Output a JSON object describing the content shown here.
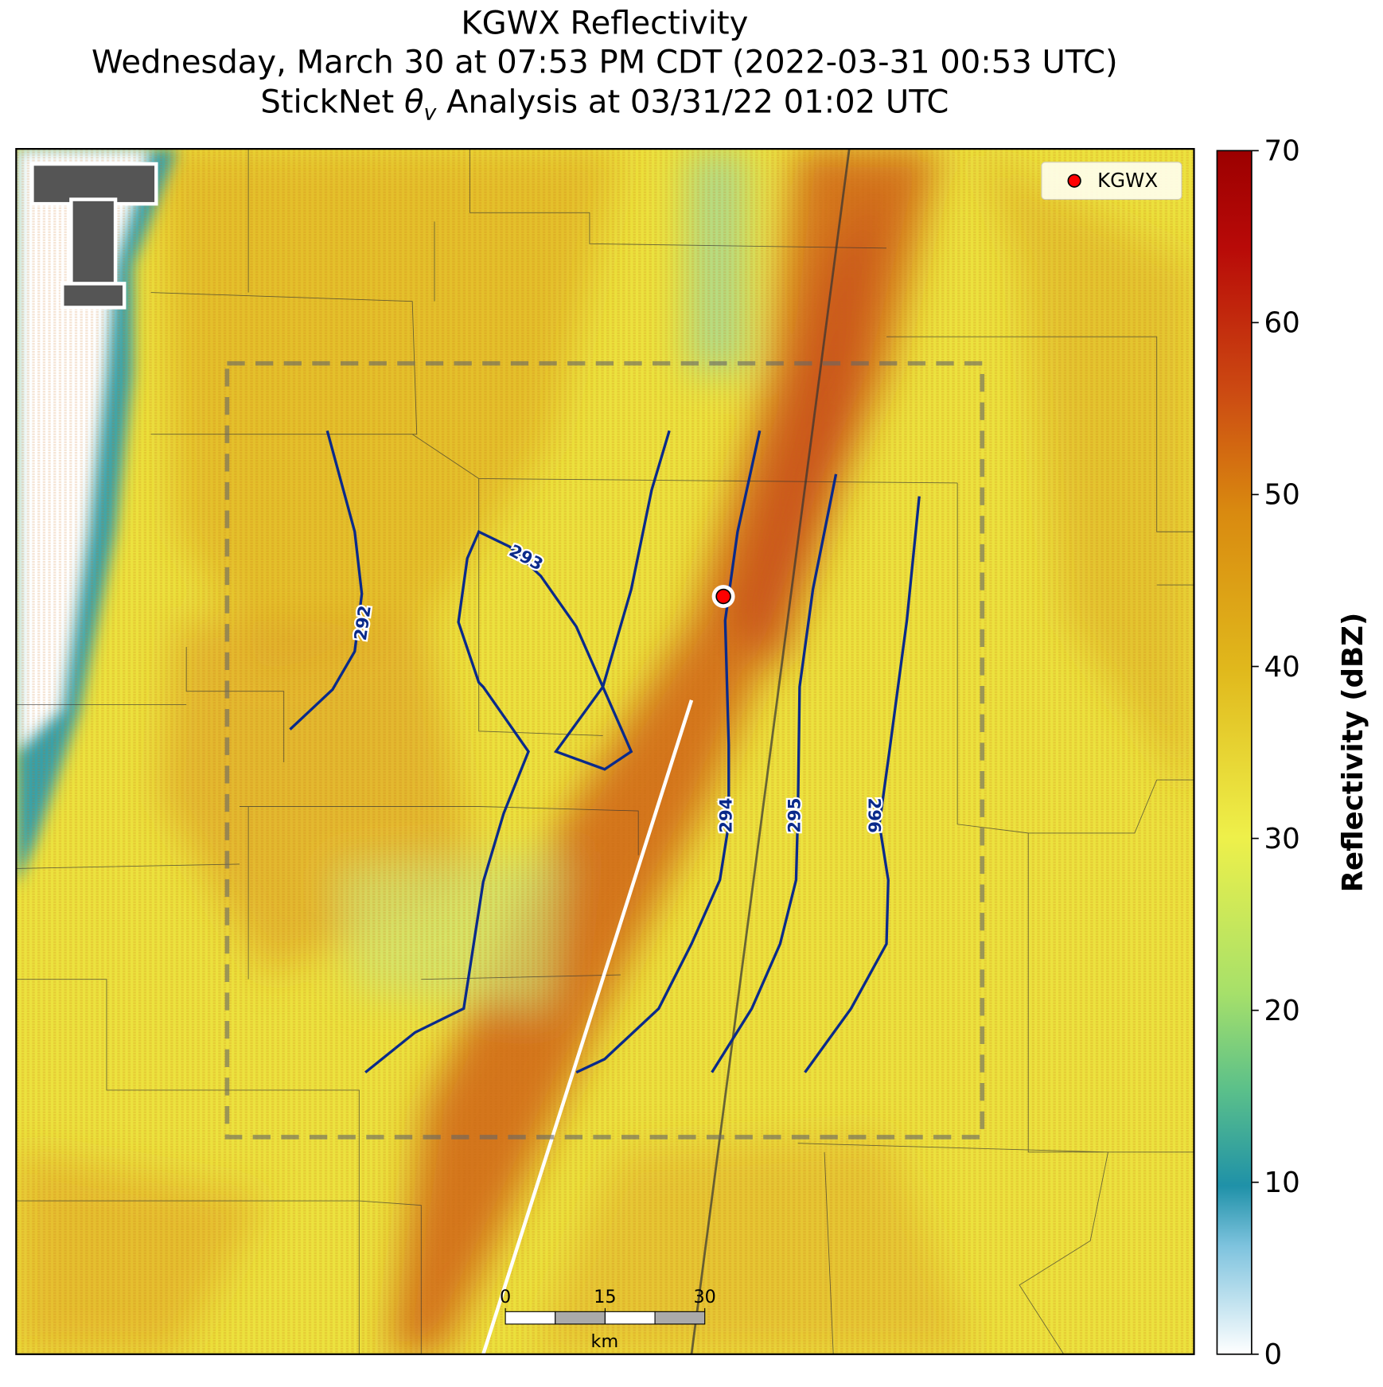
{
  "header": {
    "line1": "KGWX Reflectivity",
    "line2": "Wednesday, March 30 at 07:53 PM CDT (2022-03-31 00:53 UTC)",
    "line3": [
      "StickNet ",
      "θ",
      "v",
      " Analysis at 03/31/22 01:02 UTC"
    ]
  },
  "legend": {
    "label": "KGWX",
    "color": "#ff0000"
  },
  "contours": [
    {
      "label": 292
    },
    {
      "label": 293
    },
    {
      "label": 294
    },
    {
      "label": 295
    },
    {
      "label": 296
    }
  ],
  "colorbar": {
    "label": "Reflectivity (dBZ)",
    "lim": [
      0,
      70
    ],
    "ticks": [
      0,
      10,
      20,
      30,
      40,
      50,
      60,
      70
    ]
  },
  "scalebar": {
    "ticks": [
      0,
      15,
      30
    ],
    "unit": "km"
  }
}
